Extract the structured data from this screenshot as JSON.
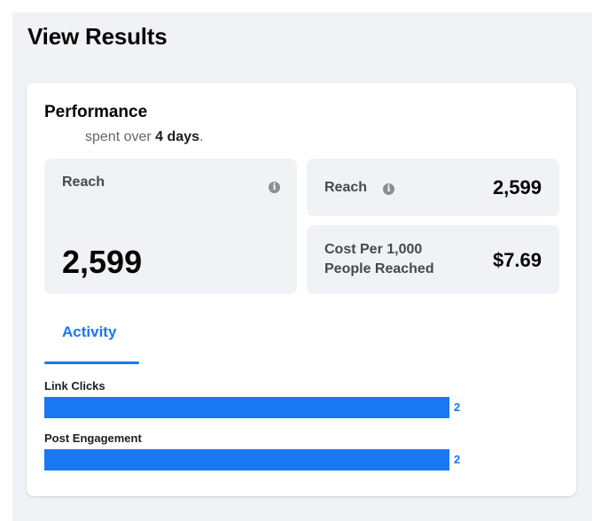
{
  "page": {
    "title": "View Results"
  },
  "performance": {
    "title": "Performance",
    "subtitle_prefix": "spent over ",
    "subtitle_days": "4 days",
    "subtitle_suffix": "."
  },
  "stats": {
    "big": {
      "label": "Reach",
      "value": "2,599",
      "icon": "info-icon"
    },
    "reach": {
      "label": "Reach",
      "value": "2,599",
      "icon": "info-icon"
    },
    "cost": {
      "label": "Cost Per 1,000 People Reached",
      "value": "$7.69"
    }
  },
  "tabs": [
    {
      "label": "Activity",
      "active": true
    }
  ],
  "activity": [
    {
      "label": "Link Clicks",
      "value": 2,
      "fill_fraction": 1.0
    },
    {
      "label": "Post Engagement",
      "value": 2,
      "fill_fraction": 1.0
    }
  ],
  "colors": {
    "accent": "#1877f2",
    "tile_bg": "#f0f2f5"
  }
}
